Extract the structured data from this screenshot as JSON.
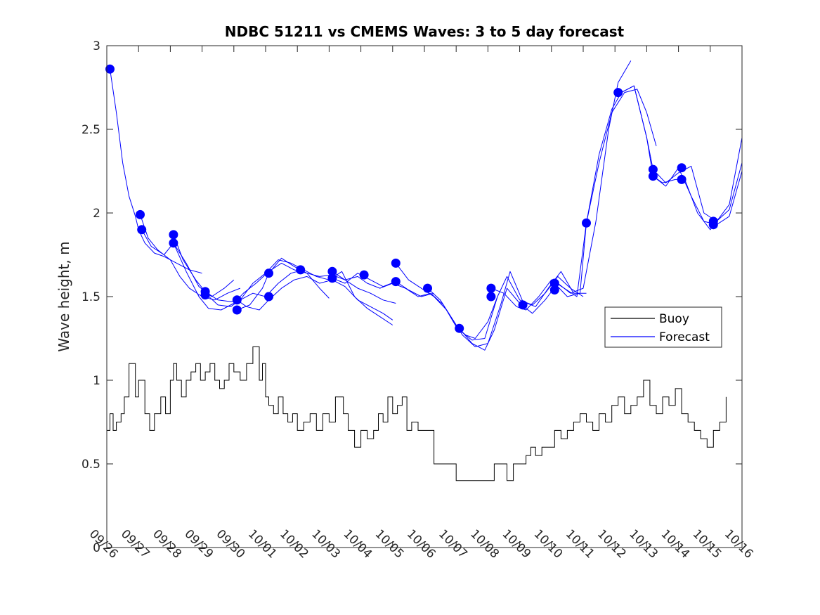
{
  "chart_data": {
    "type": "line",
    "title": "NDBC 51211 vs CMEMS Waves: 3 to 5 day forecast",
    "xlabel": "",
    "ylabel": "Wave height, m",
    "ylim": [
      0,
      3
    ],
    "xlim": [
      0,
      20
    ],
    "y_ticks": [
      0,
      0.5,
      1,
      1.5,
      2,
      2.5,
      3
    ],
    "y_tick_labels": [
      "0",
      "0.5",
      "1",
      "1.5",
      "2",
      "2.5",
      "3"
    ],
    "x_ticks": [
      0,
      1,
      2,
      3,
      4,
      5,
      6,
      7,
      8,
      9,
      10,
      11,
      12,
      13,
      14,
      15,
      16,
      17,
      18,
      19,
      20
    ],
    "x_tick_labels": [
      "09/26",
      "09/27",
      "09/28",
      "09/29",
      "09/30",
      "10/01",
      "10/02",
      "10/03",
      "10/04",
      "10/05",
      "10/06",
      "10/07",
      "10/08",
      "10/09",
      "10/10",
      "10/11",
      "10/12",
      "10/13",
      "10/14",
      "10/15",
      "10/16"
    ],
    "grid": false,
    "legend_position": "right",
    "legend": [
      {
        "name": "Buoy",
        "color": "#000000"
      },
      {
        "name": "Forecast",
        "color": "#0000ff"
      }
    ],
    "colors": {
      "buoy": "#000000",
      "forecast": "#0000ff",
      "marker": "#0000ff"
    },
    "buoy": {
      "name": "Buoy",
      "x": [
        0,
        0.1,
        0.2,
        0.3,
        0.45,
        0.55,
        0.7,
        0.9,
        1.0,
        1.2,
        1.35,
        1.5,
        1.7,
        1.85,
        2.0,
        2.1,
        2.2,
        2.35,
        2.5,
        2.65,
        2.8,
        2.95,
        3.1,
        3.25,
        3.4,
        3.55,
        3.7,
        3.85,
        4.0,
        4.2,
        4.4,
        4.6,
        4.8,
        4.9,
        5.0,
        5.1,
        5.25,
        5.4,
        5.55,
        5.7,
        5.85,
        6.0,
        6.2,
        6.4,
        6.6,
        6.8,
        7.0,
        7.2,
        7.45,
        7.6,
        7.8,
        8.0,
        8.2,
        8.4,
        8.55,
        8.7,
        8.85,
        9.0,
        9.15,
        9.3,
        9.45,
        9.6,
        9.8,
        10.0,
        10.3,
        10.5,
        10.7,
        11.0,
        11.3,
        11.6,
        11.9,
        12.2,
        12.4,
        12.6,
        12.8,
        13.0,
        13.2,
        13.35,
        13.5,
        13.7,
        13.9,
        14.1,
        14.3,
        14.5,
        14.7,
        14.9,
        15.1,
        15.3,
        15.5,
        15.7,
        15.9,
        16.1,
        16.3,
        16.5,
        16.7,
        16.9,
        17.1,
        17.3,
        17.5,
        17.7,
        17.9,
        18.1,
        18.3,
        18.5,
        18.7,
        18.9,
        19.1,
        19.3,
        19.5
      ],
      "y": [
        0.7,
        0.8,
        0.7,
        0.75,
        0.8,
        0.9,
        1.1,
        0.9,
        1.0,
        0.8,
        0.7,
        0.8,
        0.9,
        0.8,
        1.0,
        1.1,
        1.0,
        0.9,
        1.0,
        1.05,
        1.1,
        1.0,
        1.05,
        1.1,
        1.0,
        0.95,
        1.0,
        1.1,
        1.05,
        1.0,
        1.1,
        1.2,
        1.0,
        1.1,
        0.9,
        0.85,
        0.8,
        0.9,
        0.8,
        0.75,
        0.8,
        0.7,
        0.75,
        0.8,
        0.7,
        0.8,
        0.75,
        0.9,
        0.8,
        0.7,
        0.6,
        0.7,
        0.65,
        0.7,
        0.8,
        0.75,
        0.9,
        0.8,
        0.85,
        0.9,
        0.7,
        0.75,
        0.7,
        0.7,
        0.5,
        0.5,
        0.5,
        0.4,
        0.4,
        0.4,
        0.4,
        0.5,
        0.5,
        0.4,
        0.5,
        0.5,
        0.55,
        0.6,
        0.55,
        0.6,
        0.6,
        0.7,
        0.65,
        0.7,
        0.75,
        0.8,
        0.75,
        0.7,
        0.8,
        0.75,
        0.85,
        0.9,
        0.8,
        0.85,
        0.9,
        1.0,
        0.85,
        0.8,
        0.9,
        0.85,
        0.95,
        0.8,
        0.75,
        0.7,
        0.65,
        0.6,
        0.7,
        0.75,
        0.9
      ]
    },
    "forecast": {
      "name": "Forecast",
      "runs": [
        {
          "x": [
            0.1,
            0.3,
            0.5,
            0.7,
            0.9,
            1.0,
            1.2,
            1.5,
            1.8,
            2.2,
            2.6,
            3.0
          ],
          "y": [
            2.86,
            2.6,
            2.3,
            2.1,
            1.98,
            1.9,
            1.82,
            1.76,
            1.74,
            1.7,
            1.66,
            1.64
          ]
        },
        {
          "x": [
            1.05,
            1.3,
            1.6,
            2.0,
            2.3,
            2.6,
            3.0,
            3.4,
            3.8,
            4.2
          ],
          "y": [
            1.99,
            1.85,
            1.78,
            1.72,
            1.62,
            1.55,
            1.5,
            1.48,
            1.52,
            1.55
          ]
        },
        {
          "x": [
            1.1,
            1.4,
            1.8,
            2.1,
            2.5,
            2.9,
            3.3,
            3.7,
            4.0
          ],
          "y": [
            1.9,
            1.8,
            1.75,
            1.82,
            1.7,
            1.56,
            1.5,
            1.55,
            1.6
          ]
        },
        {
          "x": [
            2.1,
            2.4,
            2.8,
            3.1,
            3.5,
            3.9,
            4.2,
            4.6,
            5.0,
            5.4,
            5.8,
            6.2
          ],
          "y": [
            1.87,
            1.72,
            1.6,
            1.53,
            1.48,
            1.47,
            1.48,
            1.58,
            1.64,
            1.72,
            1.7,
            1.66
          ]
        },
        {
          "x": [
            2.1,
            2.5,
            2.9,
            3.2,
            3.6,
            4.0,
            4.3,
            4.7,
            5.1,
            5.5,
            5.9,
            6.3,
            6.7,
            7.0
          ],
          "y": [
            1.82,
            1.65,
            1.5,
            1.43,
            1.42,
            1.46,
            1.52,
            1.58,
            1.65,
            1.7,
            1.66,
            1.64,
            1.55,
            1.49
          ]
        },
        {
          "x": [
            3.1,
            3.5,
            3.9,
            4.2,
            4.6,
            5.0,
            5.4,
            5.8,
            6.2,
            6.6,
            7.0,
            7.4,
            7.8,
            8.2,
            8.6,
            9.0
          ],
          "y": [
            1.52,
            1.45,
            1.44,
            1.48,
            1.52,
            1.5,
            1.58,
            1.64,
            1.66,
            1.62,
            1.6,
            1.65,
            1.5,
            1.43,
            1.38,
            1.33
          ]
        },
        {
          "x": [
            4.1,
            4.4,
            4.8,
            5.1,
            5.5,
            5.9,
            6.3,
            6.7,
            7.1,
            7.5,
            7.9,
            8.3,
            8.7,
            9.0
          ],
          "y": [
            1.48,
            1.44,
            1.42,
            1.48,
            1.55,
            1.6,
            1.62,
            1.58,
            1.6,
            1.56,
            1.48,
            1.44,
            1.4,
            1.36
          ]
        },
        {
          "x": [
            4.1,
            4.5,
            4.9,
            5.1,
            5.5,
            5.9,
            6.3,
            6.7,
            7.1,
            7.5,
            7.9,
            8.3,
            8.7,
            9.1
          ],
          "y": [
            1.42,
            1.45,
            1.55,
            1.64,
            1.73,
            1.68,
            1.64,
            1.62,
            1.63,
            1.6,
            1.55,
            1.52,
            1.48,
            1.46
          ]
        },
        {
          "x": [
            7.1,
            7.5,
            7.9,
            8.2,
            8.6,
            9.0,
            9.4,
            9.8,
            10.2,
            10.6,
            11.0,
            11.3,
            11.6,
            12.0,
            12.3
          ],
          "y": [
            1.65,
            1.6,
            1.62,
            1.58,
            1.55,
            1.58,
            1.55,
            1.5,
            1.52,
            1.45,
            1.32,
            1.27,
            1.25,
            1.35,
            1.5
          ]
        },
        {
          "x": [
            7.1,
            7.5,
            7.9,
            8.3,
            8.7,
            9.1,
            9.5,
            9.9,
            10.3
          ],
          "y": [
            1.61,
            1.58,
            1.64,
            1.6,
            1.56,
            1.59,
            1.54,
            1.5,
            1.52
          ]
        },
        {
          "x": [
            9.1,
            9.5,
            9.9,
            10.3,
            10.7,
            11.1,
            11.5,
            11.9,
            12.3,
            12.6,
            13.0,
            13.4,
            13.8,
            14.2,
            14.6,
            15.0
          ],
          "y": [
            1.7,
            1.6,
            1.55,
            1.5,
            1.42,
            1.3,
            1.24,
            1.25,
            1.5,
            1.62,
            1.48,
            1.45,
            1.52,
            1.62,
            1.55,
            1.5
          ]
        },
        {
          "x": [
            10.1,
            10.5,
            10.9,
            11.2,
            11.6,
            12.0,
            12.4,
            12.7,
            13.1,
            13.5,
            13.9,
            14.3,
            14.7,
            15.1
          ],
          "y": [
            1.55,
            1.48,
            1.36,
            1.27,
            1.2,
            1.22,
            1.45,
            1.65,
            1.47,
            1.44,
            1.55,
            1.65,
            1.52,
            1.52
          ]
        },
        {
          "x": [
            11.1,
            11.5,
            11.9,
            12.2,
            12.6,
            13.0,
            13.4,
            13.8,
            14.2,
            14.6,
            15.0,
            15.4,
            15.8,
            16.1,
            16.5
          ],
          "y": [
            1.31,
            1.22,
            1.18,
            1.3,
            1.55,
            1.46,
            1.4,
            1.48,
            1.58,
            1.52,
            1.55,
            1.95,
            2.5,
            2.78,
            2.91
          ]
        },
        {
          "x": [
            12.1,
            12.5,
            12.9,
            13.2,
            13.6,
            14.0,
            14.4,
            14.8,
            15.1,
            15.5,
            15.9,
            16.3,
            16.7,
            17.0,
            17.3
          ],
          "y": [
            1.55,
            1.52,
            1.44,
            1.42,
            1.5,
            1.6,
            1.55,
            1.5,
            1.94,
            2.3,
            2.6,
            2.72,
            2.74,
            2.6,
            2.4
          ]
        },
        {
          "x": [
            14.1,
            14.5,
            14.9,
            15.1,
            15.5,
            15.9,
            16.2,
            16.6,
            17.0,
            17.2,
            17.6,
            18.0,
            18.4,
            18.8,
            19.2,
            19.6,
            20.0
          ],
          "y": [
            1.58,
            1.5,
            1.52,
            1.94,
            2.35,
            2.62,
            2.72,
            2.76,
            2.45,
            2.26,
            2.18,
            2.24,
            2.28,
            2.0,
            1.95,
            2.05,
            2.45
          ]
        },
        {
          "x": [
            16.2,
            16.6,
            17.0,
            17.2,
            17.5,
            17.9,
            18.2,
            18.6,
            19.0,
            19.2,
            19.6,
            20.0
          ],
          "y": [
            2.72,
            2.76,
            2.45,
            2.22,
            2.18,
            2.2,
            2.2,
            2.0,
            1.9,
            1.95,
            2.02,
            2.3
          ]
        },
        {
          "x": [
            17.2,
            17.6,
            18.0,
            18.4,
            18.8,
            19.2,
            19.6,
            20.0
          ],
          "y": [
            2.22,
            2.16,
            2.27,
            2.1,
            1.95,
            1.93,
            1.98,
            2.25
          ]
        }
      ],
      "markers": {
        "x": [
          0.1,
          1.05,
          1.1,
          2.1,
          2.1,
          3.1,
          3.1,
          4.1,
          4.1,
          5.1,
          5.1,
          6.1,
          7.1,
          7.1,
          8.1,
          9.1,
          9.1,
          10.1,
          11.1,
          12.1,
          12.1,
          13.1,
          14.1,
          14.1,
          15.1,
          16.1,
          17.2,
          17.2,
          18.1,
          18.1,
          19.1,
          19.1
        ],
        "y": [
          2.86,
          1.99,
          1.9,
          1.87,
          1.82,
          1.53,
          1.51,
          1.48,
          1.42,
          1.64,
          1.5,
          1.66,
          1.65,
          1.61,
          1.63,
          1.7,
          1.59,
          1.55,
          1.31,
          1.55,
          1.5,
          1.45,
          1.58,
          1.54,
          1.94,
          2.72,
          2.26,
          2.22,
          2.27,
          2.2,
          1.95,
          1.93
        ]
      }
    }
  }
}
